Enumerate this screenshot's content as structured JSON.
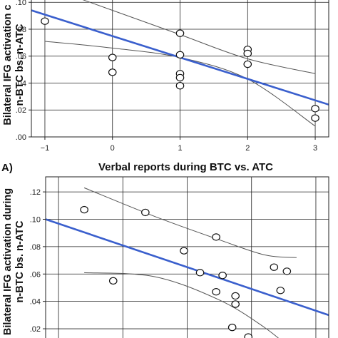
{
  "colors": {
    "fit_line": "#3a5fcd",
    "band": "#555555",
    "frame": "#222222",
    "grid": "#222222",
    "point_fill": "#ffffff"
  },
  "chart_data": [
    {
      "type": "scatter",
      "panel_label": "A)",
      "xlabel": "Verbal reports during BTC vs. ATC",
      "ylabel_lines": [
        "Bilateral IFG activation c",
        "n-BTC bs. n-ATC"
      ],
      "x_ticks": [
        -1,
        0,
        1,
        2,
        3
      ],
      "x_tick_labels": [
        "−1",
        "0",
        "1",
        "2",
        "3"
      ],
      "y_ticks": [
        0.0,
        0.02,
        0.04,
        0.06,
        0.08,
        0.1
      ],
      "y_tick_labels": [
        ".00",
        ".02",
        ".04",
        ".06",
        ".08",
        ".10"
      ],
      "xlim": [
        -1.2,
        3.2
      ],
      "ylim": [
        0.0,
        0.107
      ],
      "grid": true,
      "points": [
        {
          "x": -1,
          "y": 0.086
        },
        {
          "x": 0,
          "y": 0.059
        },
        {
          "x": 0,
          "y": 0.048
        },
        {
          "x": 1,
          "y": 0.077
        },
        {
          "x": 1,
          "y": 0.061
        },
        {
          "x": 1,
          "y": 0.047
        },
        {
          "x": 1,
          "y": 0.044
        },
        {
          "x": 1,
          "y": 0.038
        },
        {
          "x": 2,
          "y": 0.065
        },
        {
          "x": 2,
          "y": 0.062
        },
        {
          "x": 2,
          "y": 0.054
        },
        {
          "x": 3,
          "y": 0.021
        },
        {
          "x": 3,
          "y": 0.014
        }
      ],
      "fit_line": {
        "x": [
          -1.2,
          3.2
        ],
        "y": [
          0.094,
          0.024
        ]
      },
      "ci_upper": {
        "x": [
          -1,
          0,
          1,
          2,
          3
        ],
        "y": [
          0.112,
          0.094,
          0.076,
          0.058,
          0.047
        ]
      },
      "ci_lower": {
        "x": [
          -1,
          0,
          1,
          2,
          3
        ],
        "y": [
          0.071,
          0.066,
          0.059,
          0.043,
          0.008
        ]
      }
    },
    {
      "type": "scatter",
      "ylabel_lines": [
        "Bilateral IFG activation during",
        "n-BTC bs. n-ATC"
      ],
      "y_ticks": [
        0.02,
        0.04,
        0.06,
        0.08,
        0.1,
        0.12
      ],
      "y_tick_labels": [
        ".02",
        ".04",
        ".06",
        ".08",
        ".10",
        ".12"
      ],
      "xlim": [
        -1.2,
        3.2
      ],
      "ylim": [
        0.007,
        0.131
      ],
      "grid": true,
      "points": [
        {
          "x": -0.6,
          "y": 0.107
        },
        {
          "x": -0.15,
          "y": 0.055
        },
        {
          "x": 0.35,
          "y": 0.105
        },
        {
          "x": 0.95,
          "y": 0.077
        },
        {
          "x": 1.45,
          "y": 0.087
        },
        {
          "x": 1.2,
          "y": 0.061
        },
        {
          "x": 1.55,
          "y": 0.059
        },
        {
          "x": 1.45,
          "y": 0.047
        },
        {
          "x": 1.75,
          "y": 0.044
        },
        {
          "x": 1.75,
          "y": 0.038
        },
        {
          "x": 1.7,
          "y": 0.021
        },
        {
          "x": 2.35,
          "y": 0.065
        },
        {
          "x": 2.55,
          "y": 0.062
        },
        {
          "x": 2.45,
          "y": 0.048
        },
        {
          "x": 1.95,
          "y": 0.014
        }
      ],
      "fit_line": {
        "x": [
          -1.2,
          3.2
        ],
        "y": [
          0.1,
          0.03
        ]
      },
      "ci_upper": {
        "x": [
          -0.6,
          0.5,
          1.5,
          2.2,
          2.7
        ],
        "y": [
          0.123,
          0.102,
          0.085,
          0.074,
          0.072
        ]
      },
      "ci_lower": {
        "x": [
          -0.6,
          0.5,
          1.5,
          2.2,
          2.7
        ],
        "y": [
          0.061,
          0.058,
          0.041,
          0.021,
          0.002
        ]
      }
    }
  ]
}
